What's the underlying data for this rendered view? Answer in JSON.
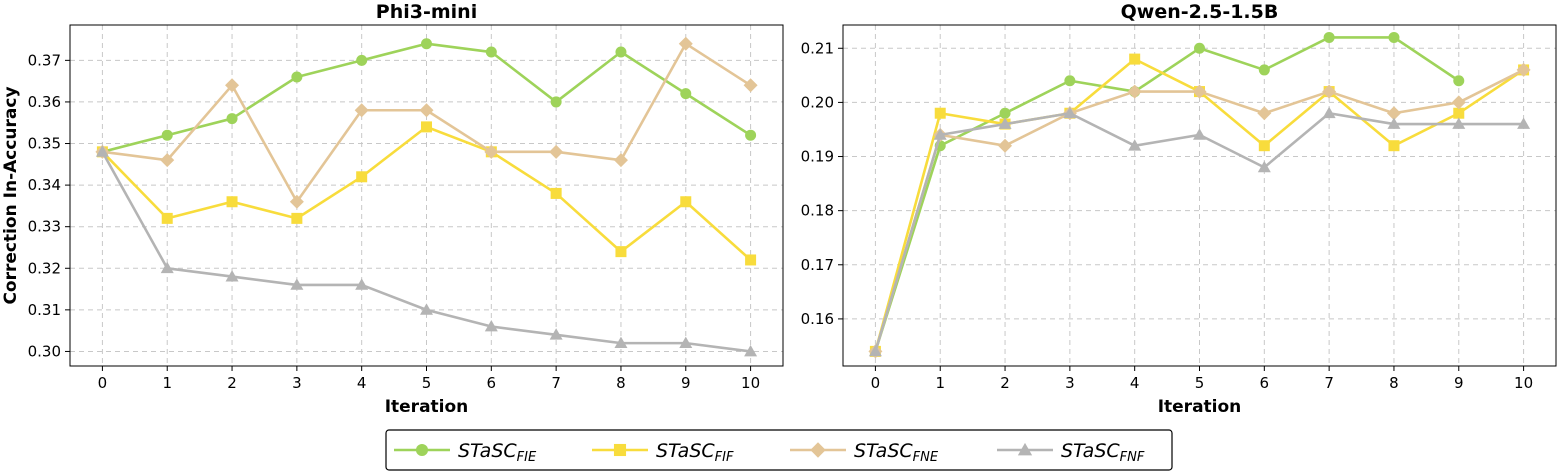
{
  "chart_data": [
    {
      "type": "line",
      "title": "Phi3-mini",
      "xlabel": "Iteration",
      "ylabel": "Correction In-Accuracy",
      "x": [
        0,
        1,
        2,
        3,
        4,
        5,
        6,
        7,
        8,
        9,
        10
      ],
      "xlim": [
        -0.5,
        10.5
      ],
      "ylim": [
        0.2965,
        0.3785
      ],
      "yticks": [
        "0.30",
        "0.31",
        "0.32",
        "0.33",
        "0.34",
        "0.35",
        "0.36",
        "0.37"
      ],
      "grid": true,
      "series": [
        {
          "name": "FIE",
          "color": "#9ed35a",
          "marker": "circle",
          "values": [
            0.348,
            0.352,
            0.356,
            0.366,
            0.37,
            0.374,
            0.372,
            0.36,
            0.372,
            0.362,
            0.352
          ]
        },
        {
          "name": "FIF",
          "color": "#f8dc3c",
          "marker": "square",
          "values": [
            0.348,
            0.332,
            0.336,
            0.332,
            0.342,
            0.354,
            0.348,
            0.338,
            0.324,
            0.336,
            0.322
          ]
        },
        {
          "name": "FNE",
          "color": "#e3c597",
          "marker": "diamond",
          "values": [
            0.348,
            0.346,
            0.364,
            0.336,
            0.358,
            0.358,
            0.348,
            0.348,
            0.346,
            0.374,
            0.364
          ]
        },
        {
          "name": "FNF",
          "color": "#b4b4b4",
          "marker": "triangle",
          "values": [
            0.348,
            0.32,
            0.318,
            0.316,
            0.316,
            0.31,
            0.306,
            0.304,
            0.302,
            0.302,
            0.3
          ]
        }
      ]
    },
    {
      "type": "line",
      "title": "Qwen-2.5-1.5B",
      "xlabel": "Iteration",
      "ylabel": "",
      "x": [
        0,
        1,
        2,
        3,
        4,
        5,
        6,
        7,
        8,
        9,
        10
      ],
      "xlim": [
        -0.5,
        10.5
      ],
      "ylim": [
        0.1513,
        0.2143
      ],
      "yticks": [
        "0.16",
        "0.17",
        "0.18",
        "0.19",
        "0.20",
        "0.21"
      ],
      "grid": true,
      "series": [
        {
          "name": "FIE",
          "color": "#9ed35a",
          "marker": "circle",
          "values": [
            0.154,
            0.192,
            0.198,
            0.204,
            0.202,
            0.21,
            0.206,
            0.212,
            0.212,
            0.204,
            null
          ]
        },
        {
          "name": "FIF",
          "color": "#f8dc3c",
          "marker": "square",
          "values": [
            0.154,
            0.198,
            0.196,
            0.198,
            0.208,
            0.202,
            0.192,
            0.202,
            0.192,
            0.198,
            0.206
          ]
        },
        {
          "name": "FNE",
          "color": "#e3c597",
          "marker": "diamond",
          "values": [
            0.154,
            0.194,
            0.192,
            0.198,
            0.202,
            0.202,
            0.198,
            0.202,
            0.198,
            0.2,
            0.206
          ]
        },
        {
          "name": "FNF",
          "color": "#b4b4b4",
          "marker": "triangle",
          "values": [
            0.154,
            0.194,
            0.196,
            0.198,
            0.192,
            0.194,
            0.188,
            0.198,
            0.196,
            0.196,
            0.196
          ]
        }
      ]
    }
  ],
  "legend": {
    "placement": "bottom-center",
    "entries": [
      {
        "base": "STaSC",
        "sub": "FIE",
        "color": "#9ed35a",
        "marker": "circle"
      },
      {
        "base": "STaSC",
        "sub": "FIF",
        "color": "#f8dc3c",
        "marker": "square"
      },
      {
        "base": "STaSC",
        "sub": "FNE",
        "color": "#e3c597",
        "marker": "diamond"
      },
      {
        "base": "STaSC",
        "sub": "FNF",
        "color": "#b4b4b4",
        "marker": "triangle"
      }
    ]
  }
}
